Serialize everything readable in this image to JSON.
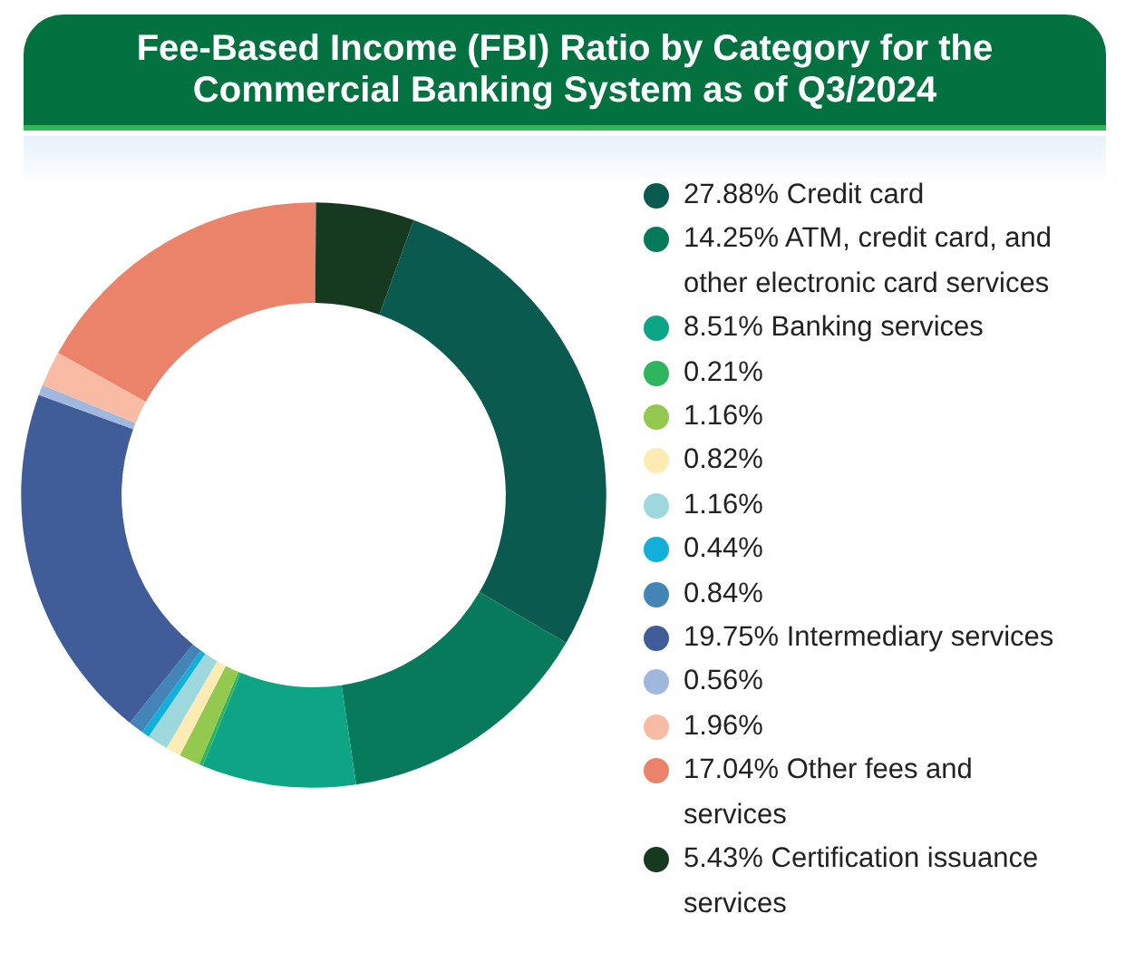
{
  "chart_data": {
    "type": "donut",
    "title": "Fee-Based Income (FBI) Ratio by Category for the Commercial Banking System as of Q3/2024",
    "categories": [
      "27.88% Credit card",
      "14.25% ATM, credit card, and other electronic card services",
      "8.51% Banking services",
      "0.21%",
      "1.16%",
      "0.82%",
      "1.16%",
      "0.44%",
      "0.84%",
      "19.75% Intermediary services",
      "0.56%",
      "1.96%",
      "17.04% Other fees and services",
      "5.43% Certification issuance services"
    ],
    "values": [
      27.88,
      14.25,
      8.51,
      0.21,
      1.16,
      0.82,
      1.16,
      0.44,
      0.84,
      19.75,
      0.56,
      1.96,
      17.04,
      5.43
    ],
    "colors": [
      "#0b5a50",
      "#087a5c",
      "#0da585",
      "#2fb55e",
      "#93c94e",
      "#fcecb4",
      "#9dd8dc",
      "#12afd8",
      "#4485b8",
      "#405c99",
      "#a1b8de",
      "#f8bba4",
      "#ea836a",
      "#163a1f"
    ],
    "legend": "right"
  }
}
